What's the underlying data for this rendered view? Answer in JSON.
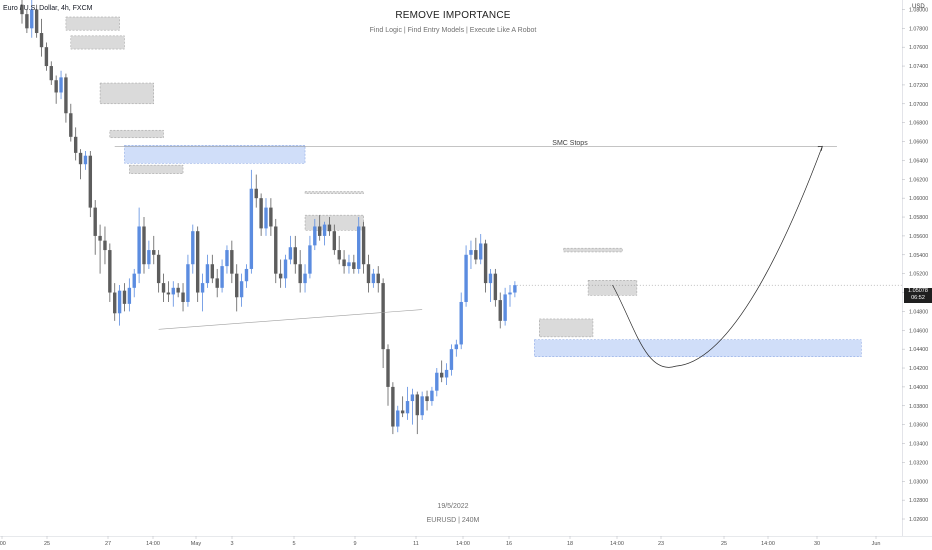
{
  "header": {
    "symbol": "Euro / U.S. Dollar, 4h, FXCM",
    "title": "REMOVE IMPORTANCE",
    "subtitle": "Find Logic | Find Entry Models | Execute Like A Robot"
  },
  "footer": {
    "date": "19/5/2022",
    "symbol": "EURUSD | 240M"
  },
  "annotations": {
    "smc_label": "SMC Stops"
  },
  "price_axis": {
    "currency": "USD",
    "current_price": "1.05078",
    "countdown": "06:52",
    "ticks": [
      "1.08000",
      "1.07800",
      "1.07600",
      "1.07400",
      "1.07200",
      "1.07000",
      "1.06800",
      "1.06600",
      "1.06400",
      "1.06200",
      "1.06000",
      "1.05800",
      "1.05600",
      "1.05400",
      "1.05200",
      "1.05000",
      "1.04800",
      "1.04600",
      "1.04400",
      "1.04200",
      "1.04000",
      "1.03800",
      "1.03600",
      "1.03400",
      "1.03200",
      "1.03000",
      "1.02800",
      "1.02600"
    ]
  },
  "time_axis": {
    "labels": [
      ":00",
      "25",
      "27",
      "14:00",
      "May",
      "3",
      "5",
      "9",
      "11",
      "14:00",
      "16",
      "18",
      "14:00",
      "23",
      "25",
      "14:00",
      "30",
      "Jun"
    ]
  },
  "colors": {
    "bull": "#5b8ce0",
    "bear": "#5d5d5d",
    "zone_blue": "#c8d8f8",
    "zone_gray": "#d6d6d6",
    "price_tag": "#1f1f1f"
  },
  "chart_data": {
    "type": "candlestick",
    "symbol": "EURUSD",
    "timeframe": "4h",
    "y_range": [
      1.0242,
      1.081
    ],
    "last_price": 1.05078,
    "smc_stops_level": 1.0655,
    "candles": [
      {
        "o": 1.0805,
        "h": 1.0815,
        "l": 1.0785,
        "c": 1.0795
      },
      {
        "o": 1.0795,
        "h": 1.08,
        "l": 1.0775,
        "c": 1.078
      },
      {
        "o": 1.078,
        "h": 1.081,
        "l": 1.077,
        "c": 1.08
      },
      {
        "o": 1.08,
        "h": 1.0805,
        "l": 1.077,
        "c": 1.0775
      },
      {
        "o": 1.0775,
        "h": 1.079,
        "l": 1.075,
        "c": 1.076
      },
      {
        "o": 1.076,
        "h": 1.0765,
        "l": 1.0735,
        "c": 1.074
      },
      {
        "o": 1.074,
        "h": 1.0745,
        "l": 1.072,
        "c": 1.0725
      },
      {
        "o": 1.0725,
        "h": 1.073,
        "l": 1.07,
        "c": 1.0712
      },
      {
        "o": 1.0712,
        "h": 1.0735,
        "l": 1.0705,
        "c": 1.0728
      },
      {
        "o": 1.0728,
        "h": 1.0732,
        "l": 1.068,
        "c": 1.069
      },
      {
        "o": 1.069,
        "h": 1.07,
        "l": 1.066,
        "c": 1.0665
      },
      {
        "o": 1.0665,
        "h": 1.0675,
        "l": 1.064,
        "c": 1.0648
      },
      {
        "o": 1.0648,
        "h": 1.0652,
        "l": 1.062,
        "c": 1.0636
      },
      {
        "o": 1.0636,
        "h": 1.065,
        "l": 1.063,
        "c": 1.0645
      },
      {
        "o": 1.0645,
        "h": 1.065,
        "l": 1.058,
        "c": 1.059
      },
      {
        "o": 1.059,
        "h": 1.0598,
        "l": 1.054,
        "c": 1.056
      },
      {
        "o": 1.056,
        "h": 1.0572,
        "l": 1.052,
        "c": 1.0555
      },
      {
        "o": 1.0555,
        "h": 1.057,
        "l": 1.053,
        "c": 1.0545
      },
      {
        "o": 1.0545,
        "h": 1.0552,
        "l": 1.049,
        "c": 1.05
      },
      {
        "o": 1.05,
        "h": 1.051,
        "l": 1.047,
        "c": 1.0478
      },
      {
        "o": 1.0478,
        "h": 1.0508,
        "l": 1.0465,
        "c": 1.0502
      },
      {
        "o": 1.0502,
        "h": 1.051,
        "l": 1.048,
        "c": 1.0488
      },
      {
        "o": 1.0488,
        "h": 1.0515,
        "l": 1.048,
        "c": 1.0505
      },
      {
        "o": 1.0505,
        "h": 1.0525,
        "l": 1.0495,
        "c": 1.052
      },
      {
        "o": 1.052,
        "h": 1.059,
        "l": 1.051,
        "c": 1.057
      },
      {
        "o": 1.057,
        "h": 1.058,
        "l": 1.052,
        "c": 1.053
      },
      {
        "o": 1.053,
        "h": 1.0555,
        "l": 1.0525,
        "c": 1.0545
      },
      {
        "o": 1.0545,
        "h": 1.056,
        "l": 1.053,
        "c": 1.054
      },
      {
        "o": 1.054,
        "h": 1.0545,
        "l": 1.05,
        "c": 1.051
      },
      {
        "o": 1.051,
        "h": 1.052,
        "l": 1.049,
        "c": 1.05
      },
      {
        "o": 1.05,
        "h": 1.0512,
        "l": 1.049,
        "c": 1.0498
      },
      {
        "o": 1.0498,
        "h": 1.0512,
        "l": 1.0485,
        "c": 1.0505
      },
      {
        "o": 1.0505,
        "h": 1.051,
        "l": 1.0495,
        "c": 1.05
      },
      {
        "o": 1.05,
        "h": 1.051,
        "l": 1.048,
        "c": 1.049
      },
      {
        "o": 1.049,
        "h": 1.054,
        "l": 1.0485,
        "c": 1.053
      },
      {
        "o": 1.053,
        "h": 1.0572,
        "l": 1.052,
        "c": 1.0565
      },
      {
        "o": 1.0565,
        "h": 1.057,
        "l": 1.049,
        "c": 1.05
      },
      {
        "o": 1.05,
        "h": 1.052,
        "l": 1.048,
        "c": 1.051
      },
      {
        "o": 1.051,
        "h": 1.054,
        "l": 1.0505,
        "c": 1.053
      },
      {
        "o": 1.053,
        "h": 1.054,
        "l": 1.051,
        "c": 1.0515
      },
      {
        "o": 1.0515,
        "h": 1.0525,
        "l": 1.0495,
        "c": 1.0505
      },
      {
        "o": 1.0505,
        "h": 1.0535,
        "l": 1.05,
        "c": 1.0528
      },
      {
        "o": 1.0528,
        "h": 1.055,
        "l": 1.052,
        "c": 1.0545
      },
      {
        "o": 1.0545,
        "h": 1.0555,
        "l": 1.051,
        "c": 1.052
      },
      {
        "o": 1.052,
        "h": 1.053,
        "l": 1.048,
        "c": 1.0495
      },
      {
        "o": 1.0495,
        "h": 1.052,
        "l": 1.0485,
        "c": 1.0512
      },
      {
        "o": 1.0512,
        "h": 1.053,
        "l": 1.0505,
        "c": 1.0525
      },
      {
        "o": 1.0525,
        "h": 1.063,
        "l": 1.052,
        "c": 1.061
      },
      {
        "o": 1.061,
        "h": 1.0625,
        "l": 1.059,
        "c": 1.06
      },
      {
        "o": 1.06,
        "h": 1.0605,
        "l": 1.056,
        "c": 1.0568
      },
      {
        "o": 1.0568,
        "h": 1.06,
        "l": 1.056,
        "c": 1.059
      },
      {
        "o": 1.059,
        "h": 1.06,
        "l": 1.056,
        "c": 1.057
      },
      {
        "o": 1.057,
        "h": 1.0578,
        "l": 1.051,
        "c": 1.052
      },
      {
        "o": 1.052,
        "h": 1.0535,
        "l": 1.0505,
        "c": 1.0515
      },
      {
        "o": 1.0515,
        "h": 1.054,
        "l": 1.0505,
        "c": 1.0535
      },
      {
        "o": 1.0535,
        "h": 1.056,
        "l": 1.053,
        "c": 1.0548
      },
      {
        "o": 1.0548,
        "h": 1.056,
        "l": 1.052,
        "c": 1.053
      },
      {
        "o": 1.053,
        "h": 1.0545,
        "l": 1.05,
        "c": 1.051
      },
      {
        "o": 1.051,
        "h": 1.053,
        "l": 1.05,
        "c": 1.052
      },
      {
        "o": 1.052,
        "h": 1.056,
        "l": 1.0515,
        "c": 1.055
      },
      {
        "o": 1.055,
        "h": 1.0578,
        "l": 1.0545,
        "c": 1.057
      },
      {
        "o": 1.057,
        "h": 1.0582,
        "l": 1.0555,
        "c": 1.056
      },
      {
        "o": 1.056,
        "h": 1.0575,
        "l": 1.055,
        "c": 1.0572
      },
      {
        "o": 1.0572,
        "h": 1.058,
        "l": 1.056,
        "c": 1.0565
      },
      {
        "o": 1.0565,
        "h": 1.0572,
        "l": 1.054,
        "c": 1.0545
      },
      {
        "o": 1.0545,
        "h": 1.056,
        "l": 1.053,
        "c": 1.0535
      },
      {
        "o": 1.0535,
        "h": 1.0545,
        "l": 1.052,
        "c": 1.0528
      },
      {
        "o": 1.0528,
        "h": 1.054,
        "l": 1.052,
        "c": 1.0532
      },
      {
        "o": 1.0532,
        "h": 1.054,
        "l": 1.052,
        "c": 1.0525
      },
      {
        "o": 1.0525,
        "h": 1.058,
        "l": 1.052,
        "c": 1.057
      },
      {
        "o": 1.057,
        "h": 1.0575,
        "l": 1.052,
        "c": 1.053
      },
      {
        "o": 1.053,
        "h": 1.054,
        "l": 1.05,
        "c": 1.051
      },
      {
        "o": 1.051,
        "h": 1.0525,
        "l": 1.0505,
        "c": 1.052
      },
      {
        "o": 1.052,
        "h": 1.0528,
        "l": 1.05,
        "c": 1.051
      },
      {
        "o": 1.051,
        "h": 1.0515,
        "l": 1.042,
        "c": 1.044
      },
      {
        "o": 1.044,
        "h": 1.0445,
        "l": 1.038,
        "c": 1.04
      },
      {
        "o": 1.04,
        "h": 1.0405,
        "l": 1.035,
        "c": 1.0358
      },
      {
        "o": 1.0358,
        "h": 1.038,
        "l": 1.0352,
        "c": 1.0375
      },
      {
        "o": 1.0375,
        "h": 1.039,
        "l": 1.0368,
        "c": 1.0372
      },
      {
        "o": 1.0372,
        "h": 1.04,
        "l": 1.0365,
        "c": 1.0385
      },
      {
        "o": 1.0385,
        "h": 1.0398,
        "l": 1.036,
        "c": 1.0392
      },
      {
        "o": 1.0392,
        "h": 1.0395,
        "l": 1.035,
        "c": 1.037
      },
      {
        "o": 1.037,
        "h": 1.0395,
        "l": 1.0365,
        "c": 1.039
      },
      {
        "o": 1.039,
        "h": 1.0396,
        "l": 1.0375,
        "c": 1.0385
      },
      {
        "o": 1.0385,
        "h": 1.04,
        "l": 1.038,
        "c": 1.0396
      },
      {
        "o": 1.0396,
        "h": 1.042,
        "l": 1.039,
        "c": 1.0415
      },
      {
        "o": 1.0415,
        "h": 1.0428,
        "l": 1.0405,
        "c": 1.041
      },
      {
        "o": 1.041,
        "h": 1.0425,
        "l": 1.0402,
        "c": 1.0418
      },
      {
        "o": 1.0418,
        "h": 1.0445,
        "l": 1.0412,
        "c": 1.044
      },
      {
        "o": 1.044,
        "h": 1.045,
        "l": 1.0432,
        "c": 1.0445
      },
      {
        "o": 1.0445,
        "h": 1.05,
        "l": 1.044,
        "c": 1.049
      },
      {
        "o": 1.049,
        "h": 1.055,
        "l": 1.0485,
        "c": 1.054
      },
      {
        "o": 1.054,
        "h": 1.0555,
        "l": 1.0525,
        "c": 1.0545
      },
      {
        "o": 1.0545,
        "h": 1.0558,
        "l": 1.053,
        "c": 1.0535
      },
      {
        "o": 1.0535,
        "h": 1.0562,
        "l": 1.053,
        "c": 1.0552
      },
      {
        "o": 1.0552,
        "h": 1.0556,
        "l": 1.05,
        "c": 1.051
      },
      {
        "o": 1.051,
        "h": 1.0525,
        "l": 1.049,
        "c": 1.052
      },
      {
        "o": 1.052,
        "h": 1.0525,
        "l": 1.0485,
        "c": 1.0492
      },
      {
        "o": 1.0492,
        "h": 1.05,
        "l": 1.0462,
        "c": 1.047
      },
      {
        "o": 1.047,
        "h": 1.0505,
        "l": 1.0465,
        "c": 1.0498
      },
      {
        "o": 1.0498,
        "h": 1.0508,
        "l": 1.0485,
        "c": 1.05
      },
      {
        "o": 1.05,
        "h": 1.0512,
        "l": 1.0495,
        "c": 1.05078
      }
    ],
    "zones": [
      {
        "kind": "gray",
        "from": 9,
        "to": 20,
        "top": 1.0792,
        "bottom": 1.0778
      },
      {
        "kind": "gray",
        "from": 10,
        "to": 21,
        "top": 1.0772,
        "bottom": 1.0758
      },
      {
        "kind": "gray",
        "from": 16,
        "to": 27,
        "top": 1.0722,
        "bottom": 1.07
      },
      {
        "kind": "gray",
        "from": 18,
        "to": 29,
        "top": 1.0672,
        "bottom": 1.0664
      },
      {
        "kind": "blue",
        "from": 21,
        "to": 58,
        "top": 1.0656,
        "bottom": 1.0637
      },
      {
        "kind": "gray",
        "from": 22,
        "to": 33,
        "top": 1.0635,
        "bottom": 1.0626
      },
      {
        "kind": "gray",
        "from": 58,
        "to": 70,
        "top": 1.0607,
        "bottom": 1.0605
      },
      {
        "kind": "gray",
        "from": 58,
        "to": 70,
        "top": 1.0582,
        "bottom": 1.0566
      },
      {
        "kind": "gray",
        "from": 106,
        "to": 117,
        "top": 1.0472,
        "bottom": 1.0453
      },
      {
        "kind": "blue",
        "from": 105,
        "to": 172,
        "top": 1.045,
        "bottom": 1.0432
      },
      {
        "kind": "gray",
        "from": 111,
        "to": 123,
        "top": 1.0547,
        "bottom": 1.0543
      },
      {
        "kind": "gray",
        "from": 116,
        "to": 126,
        "top": 1.0513,
        "bottom": 1.0497
      }
    ],
    "trendline": {
      "from": 28,
      "to": 82,
      "start": 1.0461,
      "end": 1.0482
    },
    "projection": {
      "from_index": 121,
      "from_price": 1.0508,
      "low_index": 134,
      "low_price": 1.0422,
      "to_index": 164,
      "to_price": 1.0655
    }
  }
}
